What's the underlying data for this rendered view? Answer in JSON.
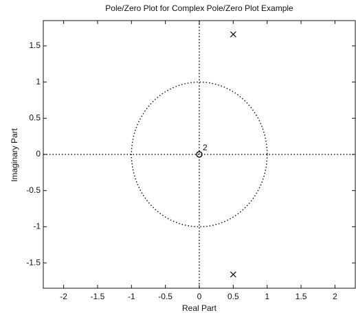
{
  "chart_data": {
    "type": "scatter",
    "title": "Pole/Zero Plot for Complex Pole/Zero Plot Example",
    "xlabel": "Real Part",
    "ylabel": "Imaginary Part",
    "xlim": [
      -2.3,
      2.3
    ],
    "ylim": [
      -1.85,
      1.85
    ],
    "xticks": [
      -2,
      -1.5,
      -1,
      -0.5,
      0,
      0.5,
      1,
      1.5,
      2
    ],
    "yticks": [
      -1.5,
      -1,
      -0.5,
      0,
      0.5,
      1,
      1.5
    ],
    "grid": false,
    "unit_circle": true,
    "zero_axes": true,
    "color": "#111111",
    "series": [
      {
        "marker": "x",
        "x": [
          0.5,
          0.5
        ],
        "values": [
          1.66,
          -1.66
        ]
      },
      {
        "marker": "o",
        "x": [
          0
        ],
        "values": [
          0
        ]
      }
    ],
    "annotations": [
      {
        "text": "2",
        "x": 0,
        "y": 0
      }
    ]
  }
}
